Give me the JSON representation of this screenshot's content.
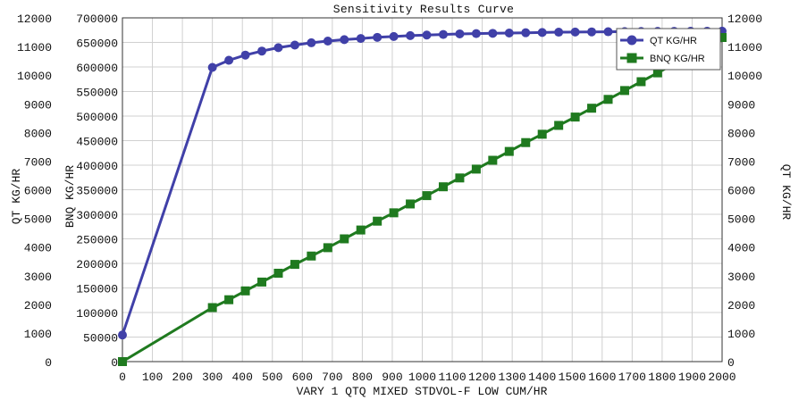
{
  "chart_data": {
    "type": "line",
    "title": "Sensitivity Results Curve",
    "xlabel": "VARY  1 QTQ MIXED STDVOL-F LOW CUM/HR",
    "ylabel_left_outer": "QT KG/HR",
    "ylabel_left_inner": "BNQ KG/HR",
    "ylabel_right": "QT KG/HR",
    "xlim": [
      0,
      2000
    ],
    "x_ticks": [
      0,
      100,
      200,
      300,
      400,
      500,
      600,
      700,
      800,
      900,
      1000,
      1100,
      1200,
      1300,
      1400,
      1500,
      1600,
      1700,
      1800,
      1900,
      2000
    ],
    "y_left_outer_lim": [
      0,
      12000
    ],
    "y_left_outer_ticks": [
      0,
      1000,
      2000,
      3000,
      4000,
      5000,
      6000,
      7000,
      8000,
      9000,
      10000,
      11000,
      12000
    ],
    "y_left_inner_lim": [
      0,
      700000
    ],
    "y_left_inner_ticks": [
      0,
      50000,
      100000,
      150000,
      200000,
      250000,
      300000,
      350000,
      400000,
      450000,
      500000,
      550000,
      600000,
      650000,
      700000
    ],
    "y_right_lim": [
      0,
      12000
    ],
    "y_right_ticks": [
      0,
      1000,
      2000,
      3000,
      4000,
      5000,
      6000,
      7000,
      8000,
      9000,
      10000,
      11000,
      12000
    ],
    "grid": true,
    "legend_position": "top-right",
    "series": [
      {
        "name": "QT KG/HR",
        "axis": "left_outer",
        "color": "#4040a8",
        "marker": "circle",
        "x": [
          0,
          300,
          355,
          410,
          465,
          520,
          575,
          630,
          685,
          740,
          795,
          850,
          905,
          960,
          1015,
          1070,
          1125,
          1180,
          1235,
          1290,
          1345,
          1400,
          1455,
          1510,
          1565,
          1620,
          1675,
          1730,
          1785,
          1840,
          1895,
          1950,
          2000
        ],
        "values": [
          930,
          10270,
          10520,
          10700,
          10840,
          10960,
          11050,
          11130,
          11190,
          11240,
          11280,
          11320,
          11350,
          11380,
          11400,
          11420,
          11440,
          11450,
          11460,
          11470,
          11480,
          11490,
          11500,
          11505,
          11510,
          11515,
          11520,
          11525,
          11528,
          11530,
          11532,
          11534,
          11535
        ]
      },
      {
        "name": "BNQ KG/HR",
        "axis": "left_inner",
        "color": "#1f7a1f",
        "marker": "square",
        "x": [
          0,
          300,
          355,
          410,
          465,
          520,
          575,
          630,
          685,
          740,
          795,
          850,
          905,
          960,
          1015,
          1070,
          1125,
          1180,
          1235,
          1290,
          1345,
          1400,
          1455,
          1510,
          1565,
          1620,
          1675,
          1730,
          1785,
          1840,
          1895,
          1950,
          2000
        ],
        "values": [
          0,
          110000,
          126000,
          144000,
          162000,
          180000,
          198000,
          215000,
          232000,
          250000,
          268000,
          286000,
          303000,
          321000,
          338000,
          356000,
          374000,
          392000,
          410000,
          428000,
          446000,
          463000,
          481000,
          498000,
          516000,
          534000,
          552000,
          570000,
          588000,
          606000,
          624000,
          642000,
          660000
        ]
      }
    ]
  }
}
